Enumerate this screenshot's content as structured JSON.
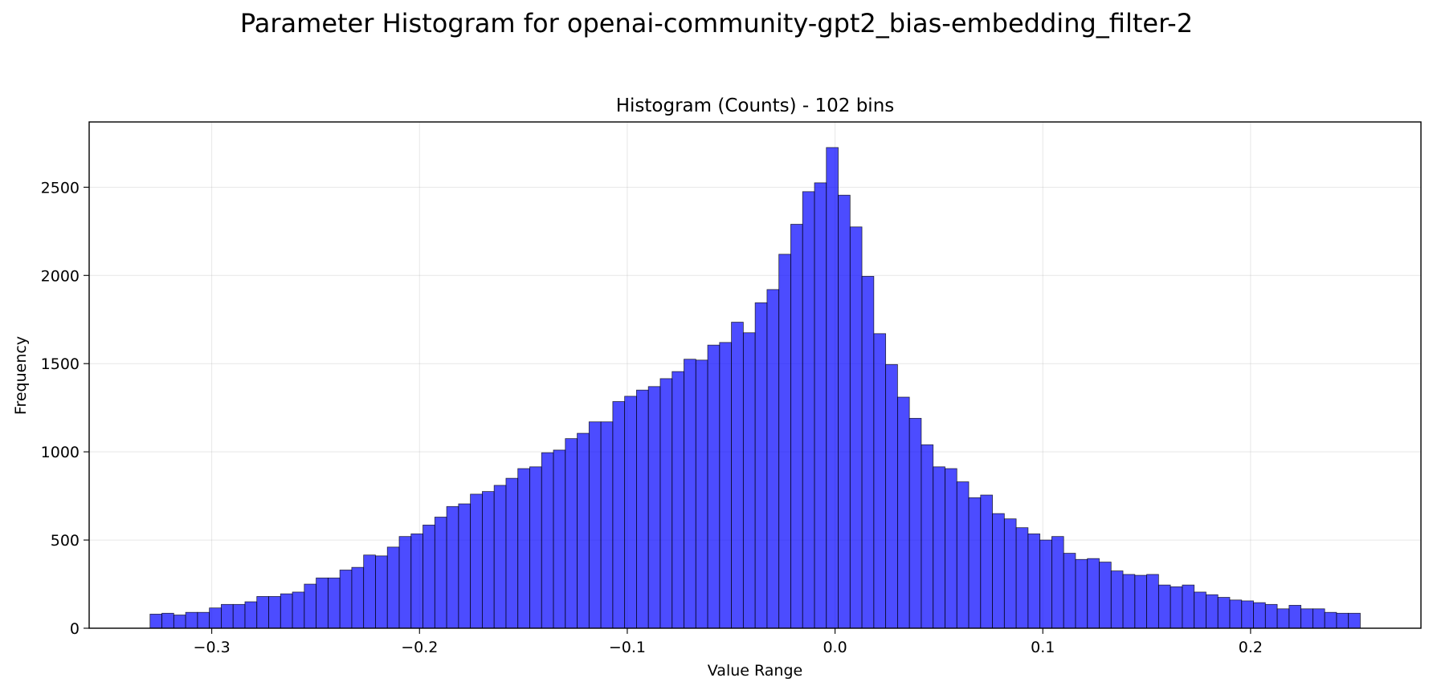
{
  "figure": {
    "suptitle": "Parameter Histogram for openai-community-gpt2_bias-embedding_filter-2"
  },
  "chart_data": {
    "type": "histogram",
    "title": "Histogram (Counts) - 102 bins",
    "xlabel": "Value Range",
    "ylabel": "Frequency",
    "xlim": [
      -0.359,
      0.282
    ],
    "ylim": [
      0,
      2870
    ],
    "x_ticks": [
      -0.3,
      -0.2,
      -0.1,
      0.0,
      0.1,
      0.2
    ],
    "x_tick_labels": [
      "−0.3",
      "−0.2",
      "−0.1",
      "0.0",
      "0.1",
      "0.2"
    ],
    "y_ticks": [
      0,
      500,
      1000,
      1500,
      2000,
      2500
    ],
    "y_tick_labels": [
      "0",
      "500",
      "1000",
      "1500",
      "2000",
      "2500"
    ],
    "grid": true,
    "bar_color": "#0000ff",
    "bar_alpha": 0.7,
    "edge_color": "#000000",
    "bins": {
      "count": 102,
      "start": -0.3297,
      "end": 0.2528
    },
    "counts": [
      80,
      85,
      75,
      90,
      90,
      115,
      135,
      135,
      150,
      180,
      180,
      195,
      205,
      250,
      285,
      285,
      330,
      345,
      415,
      410,
      460,
      520,
      535,
      585,
      630,
      690,
      705,
      760,
      775,
      810,
      850,
      905,
      915,
      995,
      1010,
      1075,
      1105,
      1170,
      1170,
      1285,
      1315,
      1350,
      1370,
      1415,
      1455,
      1525,
      1520,
      1605,
      1620,
      1735,
      1675,
      1845,
      1920,
      2120,
      2290,
      2475,
      2525,
      2725,
      2455,
      2275,
      1995,
      1670,
      1495,
      1310,
      1190,
      1040,
      915,
      905,
      830,
      740,
      755,
      650,
      620,
      570,
      535,
      500,
      520,
      425,
      390,
      395,
      375,
      325,
      305,
      300,
      305,
      245,
      235,
      245,
      205,
      190,
      175,
      160,
      155,
      145,
      135,
      110,
      130,
      110,
      110,
      90,
      85,
      85
    ]
  }
}
